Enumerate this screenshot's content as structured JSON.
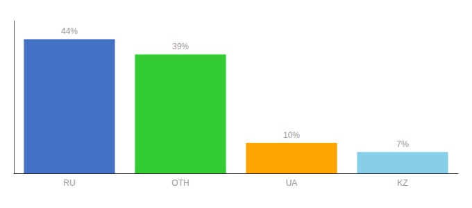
{
  "chart_data": {
    "type": "bar",
    "categories": [
      "RU",
      "OTH",
      "UA",
      "KZ"
    ],
    "values": [
      44,
      39,
      10,
      7
    ],
    "value_labels": [
      "44%",
      "39%",
      "10%",
      "7%"
    ],
    "colors": [
      "#4472C4",
      "#33CC33",
      "#FFA500",
      "#87CEEB"
    ],
    "ylim": [
      0,
      50
    ],
    "grid": false,
    "data_labels": true,
    "tick_labels": "x"
  }
}
